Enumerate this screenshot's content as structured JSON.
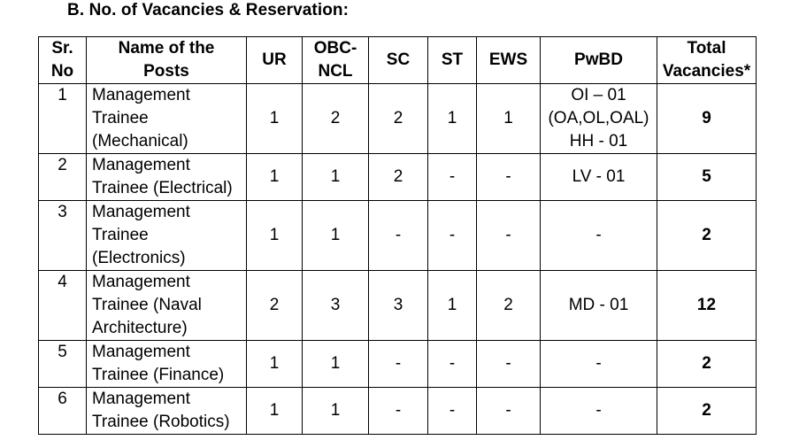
{
  "heading": "B.  No. of Vacancies & Reservation:",
  "columns": [
    [
      "Sr.",
      "No"
    ],
    [
      "Name of the",
      "Posts"
    ],
    [
      "UR"
    ],
    [
      "OBC-",
      "NCL"
    ],
    [
      "SC"
    ],
    [
      "ST"
    ],
    [
      "EWS"
    ],
    [
      "PwBD"
    ],
    [
      "Total",
      "Vacancies*"
    ]
  ],
  "rows": [
    {
      "sr": "1",
      "name": [
        "Management",
        "Trainee",
        "(Mechanical)"
      ],
      "ur": "1",
      "obc": "2",
      "sc": "2",
      "st": "1",
      "ews": "1",
      "pwbd": [
        "OI – 01",
        "(OA,OL,OAL)",
        "HH - 01"
      ],
      "total": "9"
    },
    {
      "sr": "2",
      "name": [
        "Management",
        "Trainee (Electrical)"
      ],
      "ur": "1",
      "obc": "1",
      "sc": "2",
      "st": "-",
      "ews": "-",
      "pwbd": [
        "LV - 01"
      ],
      "total": "5"
    },
    {
      "sr": "3",
      "name": [
        "Management",
        "Trainee",
        "(Electronics)"
      ],
      "ur": "1",
      "obc": "1",
      "sc": "-",
      "st": "-",
      "ews": "-",
      "pwbd": [
        "-"
      ],
      "total": "2"
    },
    {
      "sr": "4",
      "name": [
        "Management",
        "Trainee (Naval",
        "Architecture)"
      ],
      "ur": "2",
      "obc": "3",
      "sc": "3",
      "st": "1",
      "ews": "2",
      "pwbd": [
        "MD - 01"
      ],
      "total": "12"
    },
    {
      "sr": "5",
      "name": [
        "Management",
        "Trainee (Finance)"
      ],
      "ur": "1",
      "obc": "1",
      "sc": "-",
      "st": "-",
      "ews": "-",
      "pwbd": [
        "-"
      ],
      "total": "2"
    },
    {
      "sr": "6",
      "name": [
        "Management",
        "Trainee (Robotics)"
      ],
      "ur": "1",
      "obc": "1",
      "sc": "-",
      "st": "-",
      "ews": "-",
      "pwbd": [
        "-"
      ],
      "total": "2"
    }
  ]
}
